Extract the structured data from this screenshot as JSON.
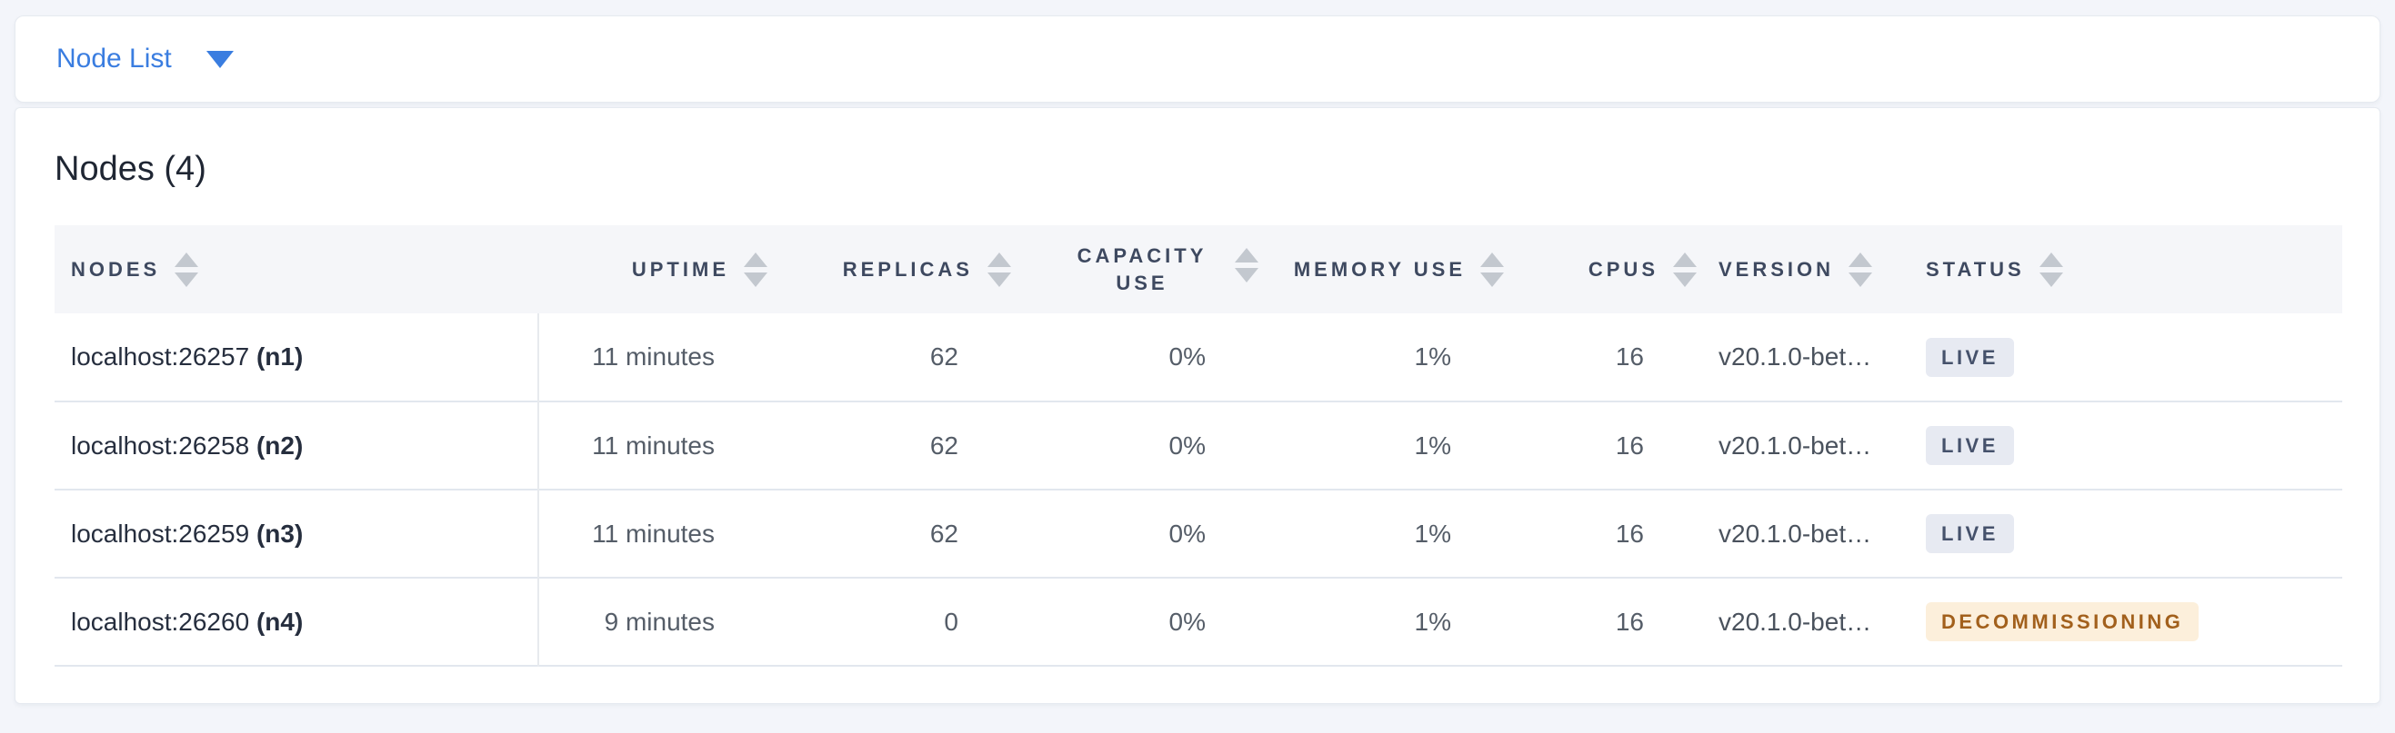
{
  "toolbar": {
    "dropdown_label": "Node List"
  },
  "panel": {
    "title": "Nodes (4)"
  },
  "table": {
    "columns": [
      {
        "key": "nodes",
        "label": "Nodes",
        "align": "left"
      },
      {
        "key": "uptime",
        "label": "Uptime",
        "align": "right"
      },
      {
        "key": "replicas",
        "label": "Replicas",
        "align": "right"
      },
      {
        "key": "capacity_use",
        "label": "Capacity Use",
        "align": "right"
      },
      {
        "key": "memory_use",
        "label": "Memory Use",
        "align": "right"
      },
      {
        "key": "cpus",
        "label": "CPUs",
        "align": "right"
      },
      {
        "key": "version",
        "label": "Version",
        "align": "left"
      },
      {
        "key": "status",
        "label": "Status",
        "align": "left"
      }
    ],
    "rows": [
      {
        "address": "localhost:26257",
        "node_id": "(n1)",
        "uptime": "11 minutes",
        "replicas": "62",
        "capacity_use": "0%",
        "memory_use": "1%",
        "cpus": "16",
        "version": "v20.1.0-bet…",
        "status_label": "LIVE",
        "status_type": "live"
      },
      {
        "address": "localhost:26258",
        "node_id": "(n2)",
        "uptime": "11 minutes",
        "replicas": "62",
        "capacity_use": "0%",
        "memory_use": "1%",
        "cpus": "16",
        "version": "v20.1.0-bet…",
        "status_label": "LIVE",
        "status_type": "live"
      },
      {
        "address": "localhost:26259",
        "node_id": "(n3)",
        "uptime": "11 minutes",
        "replicas": "62",
        "capacity_use": "0%",
        "memory_use": "1%",
        "cpus": "16",
        "version": "v20.1.0-bet…",
        "status_label": "LIVE",
        "status_type": "live"
      },
      {
        "address": "localhost:26260",
        "node_id": "(n4)",
        "uptime": "9 minutes",
        "replicas": "0",
        "capacity_use": "0%",
        "memory_use": "1%",
        "cpus": "16",
        "version": "v20.1.0-bet…",
        "status_label": "DECOMMISSIONING",
        "status_type": "decommissioning"
      }
    ]
  },
  "colors": {
    "accent_blue": "#3a7de0",
    "page_background": "#f3f5fa",
    "badge_live_bg": "#e7eaf2",
    "badge_live_text": "#45516b",
    "badge_decommissioning_bg": "#fcefdb",
    "badge_decommissioning_text": "#a2601c"
  }
}
